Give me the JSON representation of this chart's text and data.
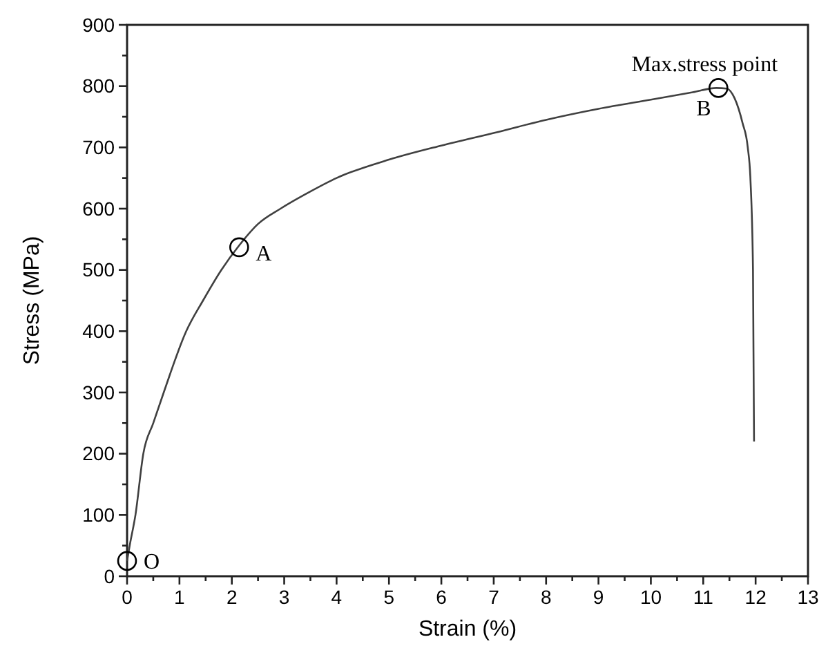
{
  "chart_data": {
    "type": "line",
    "xlabel": "Strain (%)",
    "ylabel": "Stress (MPa)",
    "xlim": [
      0,
      13
    ],
    "ylim": [
      0,
      900
    ],
    "xticks": [
      0,
      {
        "value": 0.5,
        "label": null
      },
      1,
      {
        "value": 1.5,
        "label": null
      },
      2,
      {
        "value": 2.5,
        "label": null
      },
      3,
      {
        "value": 3.5,
        "label": null
      },
      4,
      {
        "value": 4.5,
        "label": null
      },
      5,
      {
        "value": 5.5,
        "label": null
      },
      6,
      {
        "value": 6.5,
        "label": null
      },
      7,
      {
        "value": 7.5,
        "label": null
      },
      8,
      {
        "value": 8.5,
        "label": null
      },
      9,
      {
        "value": 9.5,
        "label": null
      },
      10,
      {
        "value": 10.5,
        "label": null
      },
      11,
      {
        "value": 11.5,
        "label": null
      },
      12,
      {
        "value": 12.5,
        "label": null
      },
      13
    ],
    "yticks": [
      0,
      {
        "value": 50,
        "label": null
      },
      100,
      {
        "value": 150,
        "label": null
      },
      200,
      {
        "value": 250,
        "label": null
      },
      300,
      {
        "value": 350,
        "label": null
      },
      400,
      {
        "value": 450,
        "label": null
      },
      500,
      {
        "value": 550,
        "label": null
      },
      600,
      {
        "value": 650,
        "label": null
      },
      700,
      {
        "value": 750,
        "label": null
      },
      800,
      {
        "value": 850,
        "label": null
      },
      900
    ],
    "grid": false,
    "series": [
      {
        "type": "line",
        "color": "#404040",
        "x": [
          0,
          0.05,
          0.16,
          0.31,
          0.5,
          0.7,
          1.13,
          1.45,
          1.8,
          2.14,
          2.5,
          2.93,
          3.5,
          4,
          5,
          6,
          7.07,
          8,
          9,
          10,
          10.8,
          11.25,
          11.45,
          11.6,
          11.75,
          11.85,
          11.9,
          11.95,
          11.97
        ],
        "values": [
          25,
          50,
          100,
          200,
          250,
          300,
          400,
          450,
          500,
          540,
          575,
          600,
          628,
          650,
          680,
          703,
          725,
          745,
          763,
          778,
          790,
          797,
          796,
          780,
          740,
          700,
          650,
          500,
          220
        ]
      },
      {
        "type": "scatter",
        "color": "#000000",
        "marker": "circle",
        "x": [
          0,
          2.14,
          11.29
        ],
        "values": [
          25,
          537,
          797
        ]
      }
    ],
    "annotations": [
      {
        "text": "O",
        "x": 0,
        "y": 25
      },
      {
        "text": "A",
        "x": 2.14,
        "y": 537
      },
      {
        "text": "B",
        "x": 11.29,
        "y": 797
      },
      {
        "text": "Max.stress point",
        "x": 11.29,
        "y": 797
      }
    ]
  }
}
